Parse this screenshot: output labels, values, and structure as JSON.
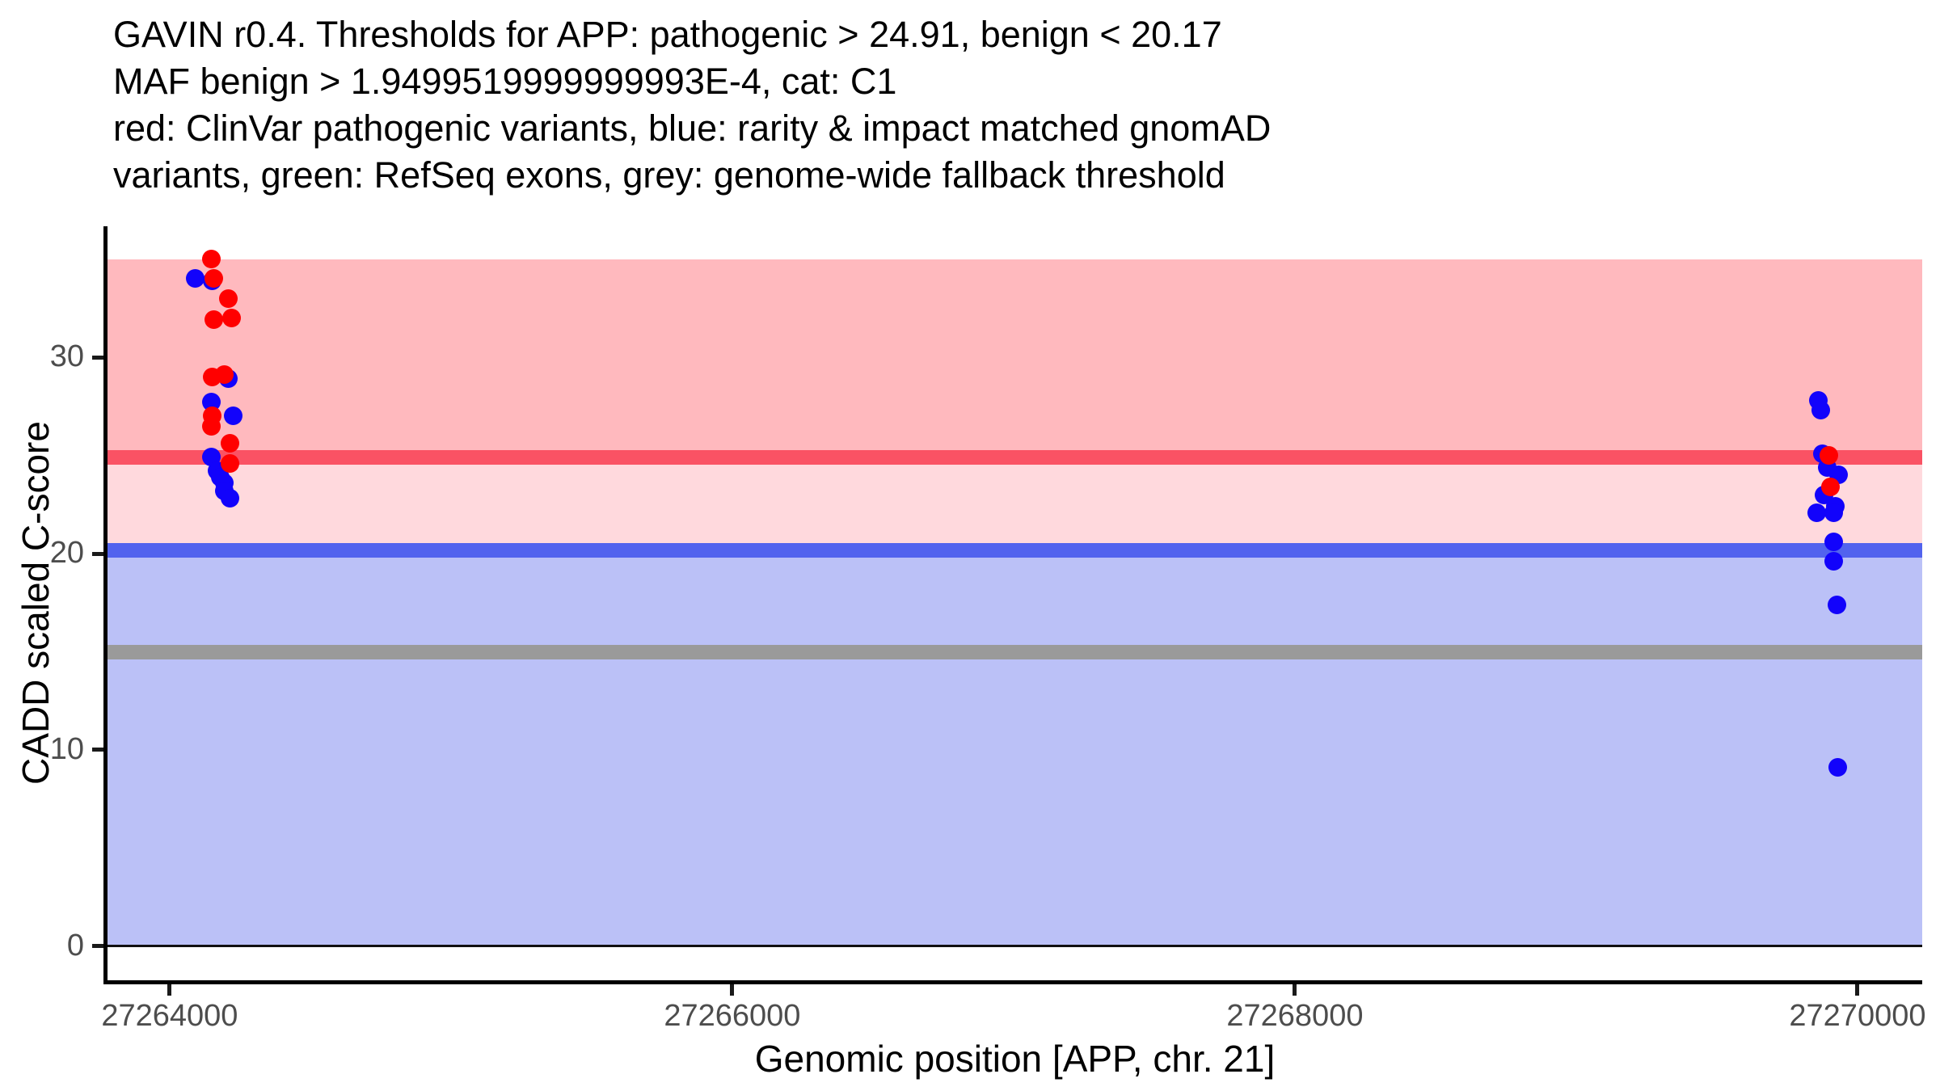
{
  "chart_data": {
    "type": "scatter",
    "title_lines": [
      "GAVIN r0.4. Thresholds for APP: pathogenic > 24.91, benign < 20.17",
      "MAF benign > 1.9499519999999993E-4, cat: C1",
      "red: ClinVar pathogenic variants, blue: rarity & impact matched gnomAD",
      "variants, green: RefSeq exons, grey: genome-wide fallback threshold"
    ],
    "xlabel": "Genomic position [APP, chr. 21]",
    "ylabel": "CADD scaled C-score",
    "x_domain": [
      27263779,
      27270230
    ],
    "y_domain": [
      -1.73,
      36.67
    ],
    "x_ticks": [
      27264000,
      27266000,
      27268000,
      27270000
    ],
    "y_ticks": [
      0,
      10,
      20,
      30
    ],
    "grid": false,
    "legend": "described in title text",
    "thresholds": {
      "pathogenic_gt": 24.91,
      "benign_lt": 20.17,
      "maf_benign_gt": "1.9499519999999993E-4",
      "category": "C1",
      "genome_wide_fallback": 15
    },
    "bands": [
      {
        "name": "benign-zone",
        "from": 0,
        "to": 20.17,
        "color": "#BBC1F7"
      },
      {
        "name": "vus-zone",
        "from": 20.17,
        "to": 24.91,
        "color": "#FFD9DD"
      },
      {
        "name": "pathogenic-zone",
        "from": 24.91,
        "to": 34.98,
        "color": "#FFB9BE"
      }
    ],
    "lines": [
      {
        "name": "zero-baseline",
        "y": 0,
        "color": "#111111",
        "thickness": 3
      },
      {
        "name": "genome-wide-fallback-line",
        "y": 15,
        "color": "#9A9A9A",
        "thickness": 18
      },
      {
        "name": "benign-threshold-line",
        "y": 20.17,
        "color": "#5263EE",
        "thickness": 18
      },
      {
        "name": "pathogenic-threshold-line",
        "y": 24.91,
        "color": "#FA5264",
        "thickness": 18
      }
    ],
    "series": [
      {
        "name": "rarity & impact matched gnomAD variants",
        "color": "#1203FB",
        "points": [
          {
            "x": 27264092,
            "y": 34.0
          },
          {
            "x": 27264152,
            "y": 33.9
          },
          {
            "x": 27264210,
            "y": 28.9
          },
          {
            "x": 27264149,
            "y": 27.7
          },
          {
            "x": 27264227,
            "y": 27.0
          },
          {
            "x": 27264147,
            "y": 24.9
          },
          {
            "x": 27264167,
            "y": 24.2
          },
          {
            "x": 27264181,
            "y": 23.9
          },
          {
            "x": 27264193,
            "y": 23.6
          },
          {
            "x": 27264195,
            "y": 23.2
          },
          {
            "x": 27264213,
            "y": 22.8
          },
          {
            "x": 27269862,
            "y": 27.8
          },
          {
            "x": 27269868,
            "y": 27.3
          },
          {
            "x": 27269876,
            "y": 25.1
          },
          {
            "x": 27269891,
            "y": 24.4
          },
          {
            "x": 27269934,
            "y": 24.0
          },
          {
            "x": 27269882,
            "y": 23.0
          },
          {
            "x": 27269920,
            "y": 22.4
          },
          {
            "x": 27269856,
            "y": 22.1
          },
          {
            "x": 27269914,
            "y": 22.1
          },
          {
            "x": 27269914,
            "y": 20.6
          },
          {
            "x": 27269914,
            "y": 19.6
          },
          {
            "x": 27269928,
            "y": 17.4
          },
          {
            "x": 27269931,
            "y": 9.1
          }
        ]
      },
      {
        "name": "ClinVar pathogenic variants",
        "color": "#FF0000",
        "points": [
          {
            "x": 27264147,
            "y": 35.0
          },
          {
            "x": 27264158,
            "y": 34.0
          },
          {
            "x": 27264210,
            "y": 33.0
          },
          {
            "x": 27264221,
            "y": 32.0
          },
          {
            "x": 27264158,
            "y": 31.9
          },
          {
            "x": 27264193,
            "y": 29.1
          },
          {
            "x": 27264152,
            "y": 29.0
          },
          {
            "x": 27264152,
            "y": 27.0
          },
          {
            "x": 27264149,
            "y": 26.5
          },
          {
            "x": 27264213,
            "y": 25.6
          },
          {
            "x": 27264213,
            "y": 24.6
          },
          {
            "x": 27269897,
            "y": 25.0
          },
          {
            "x": 27269905,
            "y": 23.4
          }
        ]
      }
    ]
  }
}
